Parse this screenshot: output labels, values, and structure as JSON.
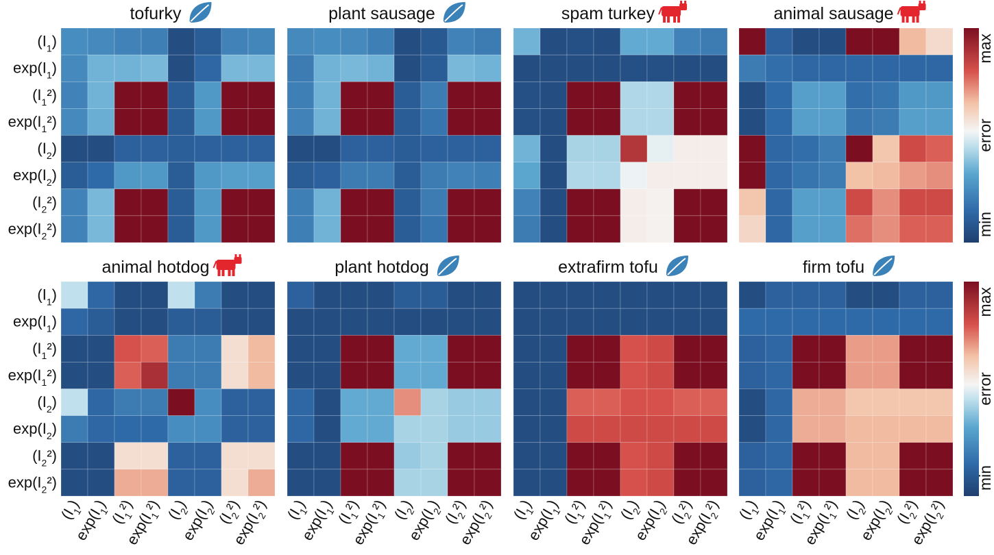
{
  "chart_data": {
    "type": "heatmap",
    "color_scale": {
      "low": "#1f3f6f",
      "mid": "#f5f5f5",
      "high": "#7b0f21",
      "tick_labels": [
        "min",
        "error",
        "max"
      ],
      "label": "error"
    },
    "icon_colors": {
      "leaf": "#3b82b9",
      "cow": "#e3262e"
    },
    "row_labels": [
      {
        "base": "(I",
        "sub": "1",
        "tail": ")"
      },
      {
        "base": "exp(I",
        "sub": "1",
        "tail": ")"
      },
      {
        "base": "(I",
        "sub": "1",
        "tail": "²)"
      },
      {
        "base": "exp(I",
        "sub": "1",
        "tail": "²)"
      },
      {
        "base": "(I",
        "sub": "2",
        "tail": ")"
      },
      {
        "base": "exp(I",
        "sub": "2",
        "tail": ")"
      },
      {
        "base": "(I",
        "sub": "2",
        "tail": "²)"
      },
      {
        "base": "exp(I",
        "sub": "2",
        "tail": "²)"
      }
    ],
    "col_labels": [
      {
        "base": "(I",
        "sub": "1",
        "tail": ")"
      },
      {
        "base": "exp(I",
        "sub": "1",
        "tail": ")"
      },
      {
        "base": "(I",
        "sub": "1",
        "tail": "²)"
      },
      {
        "base": "exp(I",
        "sub": "1",
        "tail": "²)"
      },
      {
        "base": "(I",
        "sub": "2",
        "tail": ")"
      },
      {
        "base": "exp(I",
        "sub": "2",
        "tail": ")"
      },
      {
        "base": "(I",
        "sub": "2",
        "tail": "²)"
      },
      {
        "base": "exp(I",
        "sub": "2",
        "tail": "²)"
      }
    ],
    "panels": [
      {
        "title": "tofurky",
        "icon": "leaf",
        "values": [
          [
            0.25,
            0.24,
            0.22,
            0.21,
            0.05,
            0.1,
            0.22,
            0.23
          ],
          [
            0.24,
            0.35,
            0.35,
            0.36,
            0.05,
            0.14,
            0.36,
            0.36
          ],
          [
            0.22,
            0.35,
            1.0,
            1.0,
            0.1,
            0.28,
            1.0,
            1.0
          ],
          [
            0.24,
            0.34,
            1.0,
            1.0,
            0.1,
            0.28,
            1.0,
            1.0
          ],
          [
            0.05,
            0.05,
            0.12,
            0.12,
            0.11,
            0.12,
            0.12,
            0.12
          ],
          [
            0.1,
            0.15,
            0.28,
            0.28,
            0.1,
            0.28,
            0.3,
            0.3
          ],
          [
            0.22,
            0.36,
            1.0,
            1.0,
            0.1,
            0.28,
            1.0,
            1.0
          ],
          [
            0.22,
            0.36,
            1.0,
            1.0,
            0.1,
            0.28,
            1.0,
            1.0
          ]
        ]
      },
      {
        "title": "plant sausage",
        "icon": "leaf",
        "values": [
          [
            0.24,
            0.25,
            0.24,
            0.21,
            0.05,
            0.09,
            0.22,
            0.2
          ],
          [
            0.2,
            0.35,
            0.36,
            0.35,
            0.05,
            0.1,
            0.36,
            0.35
          ],
          [
            0.21,
            0.35,
            1.0,
            1.0,
            0.1,
            0.2,
            1.0,
            1.0
          ],
          [
            0.22,
            0.35,
            1.0,
            1.0,
            0.1,
            0.18,
            1.0,
            1.0
          ],
          [
            0.05,
            0.05,
            0.12,
            0.12,
            0.1,
            0.12,
            0.12,
            0.12
          ],
          [
            0.1,
            0.12,
            0.2,
            0.2,
            0.1,
            0.2,
            0.22,
            0.21
          ],
          [
            0.21,
            0.35,
            1.0,
            1.0,
            0.1,
            0.2,
            1.0,
            1.0
          ],
          [
            0.21,
            0.35,
            1.0,
            1.0,
            0.1,
            0.18,
            1.0,
            1.0
          ]
        ]
      },
      {
        "title": "spam turkey",
        "icon": "cow",
        "values": [
          [
            0.35,
            0.05,
            0.06,
            0.05,
            0.33,
            0.33,
            0.22,
            0.2
          ],
          [
            0.05,
            0.05,
            0.05,
            0.05,
            0.06,
            0.06,
            0.05,
            0.05
          ],
          [
            0.06,
            0.05,
            1.0,
            1.0,
            0.43,
            0.43,
            1.0,
            1.0
          ],
          [
            0.06,
            0.05,
            1.0,
            1.0,
            0.43,
            0.43,
            1.0,
            1.0
          ],
          [
            0.35,
            0.05,
            0.42,
            0.42,
            0.88,
            0.5,
            0.54,
            0.54
          ],
          [
            0.32,
            0.05,
            0.43,
            0.43,
            0.51,
            0.54,
            0.54,
            0.54
          ],
          [
            0.22,
            0.05,
            1.0,
            1.0,
            0.54,
            0.53,
            1.0,
            1.0
          ],
          [
            0.2,
            0.05,
            1.0,
            1.0,
            0.54,
            0.53,
            1.0,
            1.0
          ]
        ]
      },
      {
        "title": "animal sausage",
        "icon": "cow",
        "values": [
          [
            1.0,
            0.12,
            0.05,
            0.05,
            1.0,
            1.0,
            0.66,
            0.59
          ],
          [
            0.2,
            0.16,
            0.14,
            0.14,
            0.14,
            0.14,
            0.14,
            0.14
          ],
          [
            0.05,
            0.15,
            0.3,
            0.3,
            0.16,
            0.18,
            0.28,
            0.28
          ],
          [
            0.05,
            0.15,
            0.3,
            0.3,
            0.18,
            0.2,
            0.3,
            0.3
          ],
          [
            1.0,
            0.14,
            0.16,
            0.2,
            1.0,
            0.64,
            0.82,
            0.78
          ],
          [
            1.0,
            0.14,
            0.18,
            0.2,
            0.65,
            0.66,
            0.7,
            0.72
          ],
          [
            0.64,
            0.14,
            0.3,
            0.3,
            0.82,
            0.72,
            0.82,
            0.82
          ],
          [
            0.6,
            0.14,
            0.3,
            0.3,
            0.76,
            0.72,
            0.78,
            0.78
          ]
        ]
      },
      {
        "title": "animal hotdog",
        "icon": "cow",
        "values": [
          [
            0.45,
            0.14,
            0.05,
            0.05,
            0.45,
            0.2,
            0.05,
            0.05
          ],
          [
            0.14,
            0.1,
            0.05,
            0.05,
            0.1,
            0.1,
            0.05,
            0.05
          ],
          [
            0.05,
            0.05,
            0.8,
            0.78,
            0.2,
            0.2,
            0.58,
            0.66
          ],
          [
            0.05,
            0.05,
            0.78,
            0.9,
            0.2,
            0.2,
            0.58,
            0.66
          ],
          [
            0.45,
            0.14,
            0.2,
            0.2,
            1.0,
            0.25,
            0.12,
            0.12
          ],
          [
            0.2,
            0.14,
            0.15,
            0.15,
            0.25,
            0.25,
            0.12,
            0.12
          ],
          [
            0.05,
            0.05,
            0.58,
            0.58,
            0.12,
            0.12,
            0.58,
            0.58
          ],
          [
            0.05,
            0.05,
            0.68,
            0.68,
            0.12,
            0.12,
            0.58,
            0.68
          ]
        ]
      },
      {
        "title": "plant hotdog",
        "icon": "leaf",
        "values": [
          [
            0.12,
            0.05,
            0.05,
            0.05,
            0.1,
            0.1,
            0.05,
            0.05
          ],
          [
            0.05,
            0.05,
            0.05,
            0.05,
            0.05,
            0.05,
            0.05,
            0.05
          ],
          [
            0.05,
            0.05,
            1.0,
            1.0,
            0.33,
            0.33,
            1.0,
            1.0
          ],
          [
            0.05,
            0.05,
            1.0,
            1.0,
            0.33,
            0.33,
            1.0,
            1.0
          ],
          [
            0.14,
            0.05,
            0.33,
            0.33,
            0.72,
            0.42,
            0.4,
            0.4
          ],
          [
            0.14,
            0.05,
            0.33,
            0.33,
            0.42,
            0.42,
            0.4,
            0.4
          ],
          [
            0.05,
            0.05,
            1.0,
            1.0,
            0.4,
            0.42,
            1.0,
            1.0
          ],
          [
            0.05,
            0.05,
            1.0,
            1.0,
            0.42,
            0.42,
            1.0,
            1.0
          ]
        ]
      },
      {
        "title": "extrafirm tofu",
        "icon": "leaf",
        "values": [
          [
            0.05,
            0.05,
            0.05,
            0.05,
            0.05,
            0.05,
            0.05,
            0.05
          ],
          [
            0.05,
            0.05,
            0.05,
            0.05,
            0.05,
            0.05,
            0.05,
            0.05
          ],
          [
            0.05,
            0.05,
            1.0,
            1.0,
            0.8,
            0.82,
            1.0,
            1.0
          ],
          [
            0.05,
            0.05,
            1.0,
            1.0,
            0.8,
            0.82,
            1.0,
            1.0
          ],
          [
            0.05,
            0.05,
            0.78,
            0.78,
            0.8,
            0.8,
            0.78,
            0.78
          ],
          [
            0.05,
            0.05,
            0.82,
            0.82,
            0.82,
            0.82,
            0.82,
            0.82
          ],
          [
            0.05,
            0.05,
            1.0,
            1.0,
            0.8,
            0.82,
            1.0,
            1.0
          ],
          [
            0.05,
            0.05,
            1.0,
            1.0,
            0.8,
            0.82,
            1.0,
            1.0
          ]
        ]
      },
      {
        "title": "firm tofu",
        "icon": "leaf",
        "values": [
          [
            0.05,
            0.12,
            0.12,
            0.12,
            0.05,
            0.05,
            0.12,
            0.12
          ],
          [
            0.15,
            0.15,
            0.15,
            0.15,
            0.15,
            0.15,
            0.15,
            0.15
          ],
          [
            0.12,
            0.14,
            1.0,
            1.0,
            0.7,
            0.7,
            1.0,
            1.0
          ],
          [
            0.12,
            0.14,
            1.0,
            1.0,
            0.7,
            0.7,
            1.0,
            1.0
          ],
          [
            0.05,
            0.14,
            0.68,
            0.68,
            0.64,
            0.64,
            0.64,
            0.64
          ],
          [
            0.05,
            0.14,
            0.68,
            0.68,
            0.66,
            0.66,
            0.66,
            0.66
          ],
          [
            0.12,
            0.14,
            1.0,
            1.0,
            0.66,
            0.66,
            1.0,
            1.0
          ],
          [
            0.12,
            0.14,
            1.0,
            1.0,
            0.66,
            0.66,
            1.0,
            1.0
          ]
        ]
      }
    ]
  }
}
